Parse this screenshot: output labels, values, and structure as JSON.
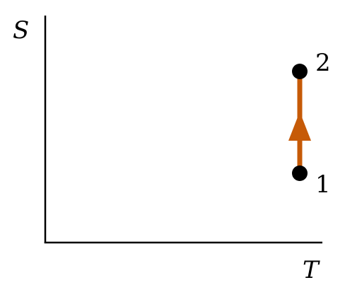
{
  "axes": {
    "y_label": "S",
    "x_label": "T"
  },
  "points": [
    {
      "label": "1"
    },
    {
      "label": "2"
    }
  ],
  "colors": {
    "axis": "#000000",
    "process": "#c65a07",
    "point": "#000000"
  }
}
